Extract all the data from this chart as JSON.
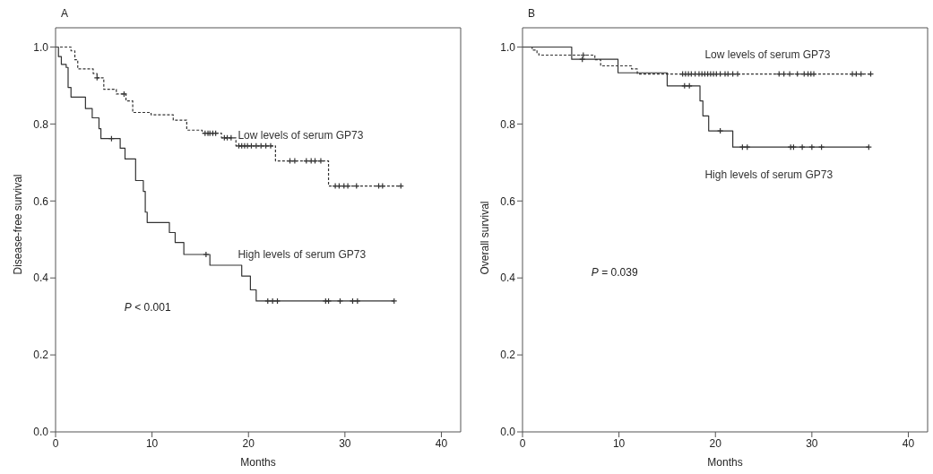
{
  "chart_data": [
    {
      "type": "step",
      "title": "A",
      "xlabel": "Months",
      "ylabel": "Disease-free survival",
      "xlim": [
        0,
        42
      ],
      "xticks": [
        0,
        10,
        20,
        30,
        40
      ],
      "ylim": [
        0,
        1.05
      ],
      "yticks": [
        {
          "value": 0,
          "label": "0.0"
        },
        {
          "value": 0.2,
          "label": "0.2"
        },
        {
          "value": 0.4,
          "label": "0.4"
        },
        {
          "value": 0.6,
          "label": "0.6"
        },
        {
          "value": 0.8,
          "label": "0.8"
        },
        {
          "value": 1,
          "label": "1.0"
        }
      ],
      "grid": false,
      "legend": false,
      "annotations": [
        "P < 0.001"
      ],
      "series": [
        {
          "name": "Low levels of serum GP73",
          "color": "#333333",
          "line_style": "dashed",
          "x": [
            0,
            1.6,
            2.0,
            2.3,
            3.9,
            4.3,
            5.0,
            6.3,
            7.3,
            8.0,
            9.9,
            12.2,
            13.6,
            15.2,
            17.2,
            18.7,
            22.8,
            28.3,
            35.8
          ],
          "values": [
            1.0,
            0.99,
            0.967,
            0.943,
            0.931,
            0.92,
            0.89,
            0.878,
            0.86,
            0.83,
            0.824,
            0.81,
            0.784,
            0.776,
            0.764,
            0.743,
            0.704,
            0.639,
            0.639
          ]
        },
        {
          "name": "High levels of serum GP73",
          "color": "#333333",
          "line_style": "solid",
          "x": [
            0,
            0.3,
            0.6,
            1.1,
            1.3,
            1.6,
            3.1,
            3.8,
            4.5,
            4.7,
            6.7,
            7.2,
            8.3,
            9.1,
            9.3,
            9.5,
            11.8,
            12.4,
            13.3,
            16.0,
            19.3,
            20.2,
            20.8,
            35.1
          ],
          "values": [
            1.0,
            0.975,
            0.955,
            0.947,
            0.895,
            0.87,
            0.84,
            0.816,
            0.788,
            0.762,
            0.737,
            0.709,
            0.653,
            0.625,
            0.571,
            0.544,
            0.518,
            0.492,
            0.461,
            0.433,
            0.405,
            0.369,
            0.34,
            0.34
          ]
        },
        {
          "type": "scatter",
          "marker": "cross",
          "color": "#333333",
          "x": [
            4.3,
            7.1,
            15.5,
            15.8,
            16.0,
            16.3,
            16.6,
            17.5,
            17.8,
            18.2,
            19.0,
            19.3,
            19.6,
            19.9,
            20.3,
            20.8,
            21.3,
            21.8,
            22.3,
            24.3,
            24.8,
            26.0,
            26.5,
            26.9,
            27.5,
            29.0,
            29.4,
            29.9,
            30.3,
            31.2,
            33.5,
            33.9,
            35.8
          ],
          "values": [
            0.92,
            0.878,
            0.776,
            0.776,
            0.776,
            0.776,
            0.776,
            0.764,
            0.764,
            0.764,
            0.743,
            0.743,
            0.743,
            0.743,
            0.743,
            0.743,
            0.743,
            0.743,
            0.743,
            0.704,
            0.704,
            0.704,
            0.704,
            0.704,
            0.704,
            0.639,
            0.639,
            0.639,
            0.639,
            0.639,
            0.639,
            0.639,
            0.639
          ]
        },
        {
          "type": "scatter",
          "marker": "cross",
          "color": "#333333",
          "x": [
            5.8,
            15.6,
            22.0,
            22.5,
            23.0,
            28.0,
            28.3,
            29.5,
            30.8,
            31.3,
            35.1
          ],
          "values": [
            0.762,
            0.461,
            0.34,
            0.34,
            0.34,
            0.34,
            0.34,
            0.34,
            0.34,
            0.34,
            0.34
          ]
        }
      ]
    },
    {
      "type": "step",
      "title": "B",
      "xlabel": "Months",
      "ylabel": "Overall survival",
      "xlim": [
        0,
        42
      ],
      "xticks": [
        0,
        10,
        20,
        30,
        40
      ],
      "ylim": [
        0,
        1.05
      ],
      "yticks": [
        {
          "value": 0,
          "label": "0.0"
        },
        {
          "value": 0.2,
          "label": "0.2"
        },
        {
          "value": 0.4,
          "label": "0.4"
        },
        {
          "value": 0.6,
          "label": "0.6"
        },
        {
          "value": 0.8,
          "label": "0.8"
        },
        {
          "value": 1,
          "label": "1.0"
        }
      ],
      "grid": false,
      "legend": false,
      "annotations": [
        "P = 0.039"
      ],
      "series": [
        {
          "name": "Low levels of serum GP73",
          "color": "#333333",
          "line_style": "dashed",
          "x": [
            0,
            1.0,
            1.5,
            1.7,
            7.5,
            8.1,
            11.3,
            11.9,
            36.1
          ],
          "values": [
            1.0,
            0.992,
            0.983,
            0.979,
            0.967,
            0.951,
            0.943,
            0.93,
            0.93
          ]
        },
        {
          "name": "High levels of serum GP73",
          "color": "#333333",
          "line_style": "solid",
          "x": [
            0,
            5.1,
            9.9,
            15.0,
            18.4,
            18.7,
            19.3,
            21.8,
            35.9
          ],
          "values": [
            1.0,
            0.968,
            0.933,
            0.899,
            0.86,
            0.821,
            0.782,
            0.74,
            0.74
          ]
        },
        {
          "type": "scatter",
          "marker": "cross",
          "color": "#333333",
          "x": [
            6.3,
            16.6,
            16.9,
            17.2,
            17.5,
            17.9,
            18.3,
            18.6,
            18.9,
            19.2,
            19.5,
            19.8,
            20.1,
            20.5,
            21.0,
            21.3,
            21.8,
            22.3,
            26.6,
            27.1,
            27.7,
            28.5,
            29.2,
            29.6,
            29.9,
            30.2,
            34.2,
            34.6,
            35.1,
            36.1
          ],
          "values": [
            0.979,
            0.93,
            0.93,
            0.93,
            0.93,
            0.93,
            0.93,
            0.93,
            0.93,
            0.93,
            0.93,
            0.93,
            0.93,
            0.93,
            0.93,
            0.93,
            0.93,
            0.93,
            0.93,
            0.93,
            0.93,
            0.93,
            0.93,
            0.93,
            0.93,
            0.93,
            0.93,
            0.93,
            0.93,
            0.93
          ]
        },
        {
          "type": "scatter",
          "marker": "cross",
          "color": "#333333",
          "x": [
            6.2,
            16.8,
            17.3,
            20.5,
            22.8,
            23.3,
            27.8,
            28.1,
            29.0,
            30.0,
            31.0,
            35.9
          ],
          "values": [
            0.968,
            0.899,
            0.899,
            0.782,
            0.74,
            0.74,
            0.74,
            0.74,
            0.74,
            0.74,
            0.74,
            0.74
          ]
        }
      ]
    }
  ]
}
